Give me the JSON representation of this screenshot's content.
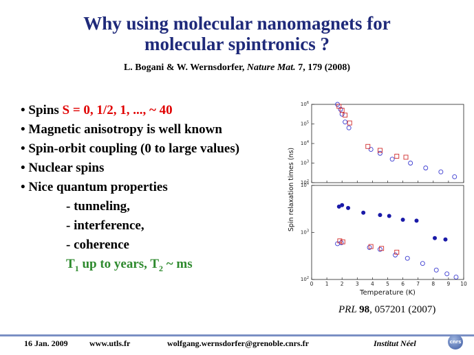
{
  "slide": {
    "title_line1": "Why using molecular nanomagnets for",
    "title_line2": "molecular spintronics ?",
    "ref_authors": "L. Bogani & W. Wernsdorfer, ",
    "ref_journal": "Nature Mat.",
    "ref_rest": " 7, 179 (2008)"
  },
  "bullets": {
    "b1_prefix": "• Spins ",
    "b1_values": "S = 0, 1/2, 1, ..., ~ 40",
    "b2": "• Magnetic anisotropy is well known",
    "b3": "• Spin-orbit coupling (0 to large values)",
    "b4": "• Nuclear spins",
    "b5": "• Nice quantum properties",
    "s1": "- tunneling,",
    "s2": "- interference,",
    "s3": "- coherence",
    "t1_label": "T",
    "t1_sub": "1",
    "t1_rest": " up to years, T",
    "t2_sub": "2",
    "t2_rest": " ~ ms"
  },
  "prl": {
    "journal": "PRL ",
    "volume": "98",
    "rest": ", 057201 (2007)"
  },
  "footer": {
    "date": "16 Jan. 2009",
    "website": "www.utls.fr",
    "email": "wolfgang.wernsdorfer@grenoble.cnrs.fr",
    "institute": "Institut Néel",
    "logo_text": "cnrs"
  },
  "chart_data": {
    "type": "scatter",
    "xlabel": "Temperature (K)",
    "ylabel": "Spin relaxation times (ns)",
    "xlim": [
      0,
      10
    ],
    "x_ticks": [
      "0",
      "1",
      "2",
      "3",
      "4",
      "5",
      "6",
      "7",
      "8",
      "9",
      "10"
    ],
    "panels": [
      {
        "name": "top",
        "ylim_log10": [
          2,
          6
        ],
        "y_ticks": [
          {
            "base": "10",
            "exp": "2"
          },
          {
            "base": "10",
            "exp": "3"
          },
          {
            "base": "10",
            "exp": "4"
          },
          {
            "base": "10",
            "exp": "5"
          },
          {
            "base": "10",
            "exp": "6"
          }
        ],
        "series": [
          {
            "marker": "open-circle",
            "color": "#3a3ad0",
            "points": [
              [
                1.7,
                6.0
              ],
              [
                1.9,
                5.75
              ],
              [
                2.0,
                5.5
              ],
              [
                2.2,
                5.1
              ],
              [
                2.45,
                4.8
              ],
              [
                3.9,
                3.7
              ],
              [
                4.5,
                3.5
              ],
              [
                5.3,
                3.2
              ],
              [
                6.5,
                3.0
              ],
              [
                7.5,
                2.75
              ],
              [
                8.5,
                2.55
              ],
              [
                9.4,
                2.3
              ]
            ]
          },
          {
            "marker": "open-square",
            "color": "#d02a2a",
            "points": [
              [
                1.8,
                5.9
              ],
              [
                2.0,
                5.7
              ],
              [
                2.2,
                5.45
              ],
              [
                2.5,
                5.05
              ],
              [
                3.7,
                3.85
              ],
              [
                4.5,
                3.65
              ],
              [
                5.6,
                3.35
              ],
              [
                6.2,
                3.3
              ]
            ]
          }
        ]
      },
      {
        "name": "bottom",
        "ylim_log10": [
          2,
          4
        ],
        "y_ticks": [
          {
            "base": "10",
            "exp": "2"
          },
          {
            "base": "10",
            "exp": "3"
          },
          {
            "base": "10",
            "exp": "4"
          }
        ],
        "series": [
          {
            "marker": "filled-circle",
            "color": "#1a1aa8",
            "points": [
              [
                1.8,
                3.55
              ],
              [
                2.0,
                3.58
              ],
              [
                2.4,
                3.52
              ],
              [
                3.4,
                3.42
              ],
              [
                4.5,
                3.37
              ],
              [
                5.1,
                3.35
              ],
              [
                6.0,
                3.27
              ],
              [
                6.9,
                3.25
              ],
              [
                8.1,
                2.88
              ],
              [
                8.8,
                2.85
              ]
            ]
          },
          {
            "marker": "open-circle",
            "color": "#3a3ad0",
            "points": [
              [
                1.7,
                2.76
              ],
              [
                1.95,
                2.78
              ],
              [
                3.8,
                2.68
              ],
              [
                4.5,
                2.64
              ],
              [
                5.5,
                2.52
              ],
              [
                6.3,
                2.45
              ],
              [
                7.3,
                2.34
              ],
              [
                8.2,
                2.2
              ],
              [
                8.9,
                2.12
              ],
              [
                9.5,
                2.05
              ]
            ]
          },
          {
            "marker": "open-square",
            "color": "#d02a2a",
            "points": [
              [
                1.85,
                2.82
              ],
              [
                2.05,
                2.8
              ],
              [
                3.9,
                2.7
              ],
              [
                4.6,
                2.66
              ],
              [
                5.6,
                2.58
              ]
            ]
          }
        ]
      }
    ]
  }
}
